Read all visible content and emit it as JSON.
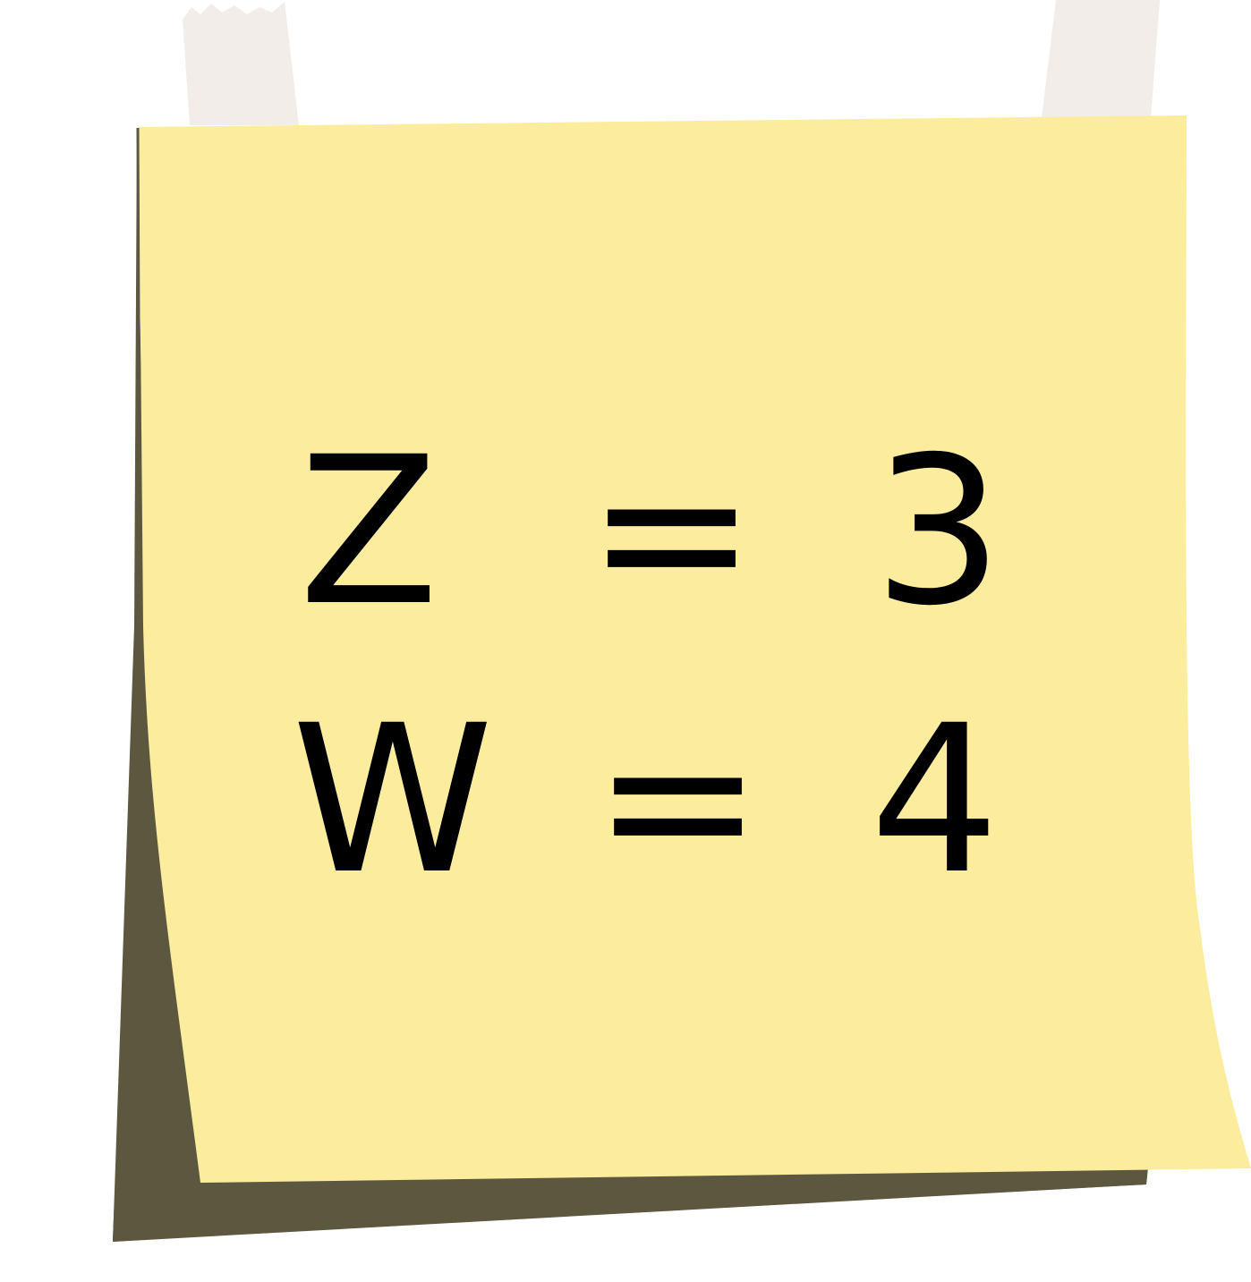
{
  "note": {
    "background_color": "#fcec9e",
    "shadow_color": "#5c5840",
    "tape_color": "#f2ede8",
    "text_color": "#000000",
    "lines": [
      {
        "variable": "Z",
        "operator": "=",
        "value": "3"
      },
      {
        "variable": "W",
        "operator": "=",
        "value": "4"
      }
    ]
  }
}
